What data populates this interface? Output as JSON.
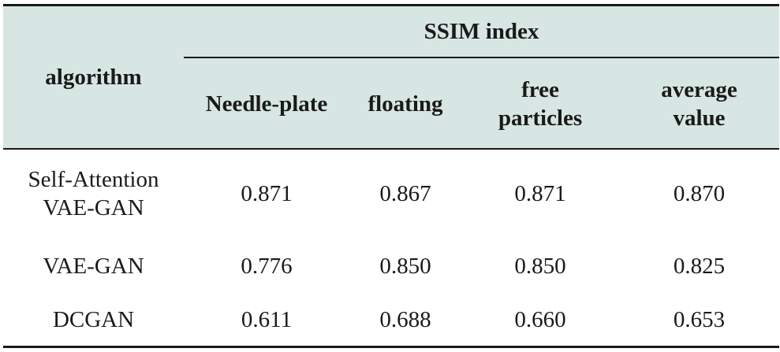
{
  "table": {
    "header": {
      "algorithm": "algorithm",
      "group": "SSIM index",
      "columns": [
        "Needle-plate",
        "floating",
        "free particles",
        "average value"
      ]
    },
    "rows": [
      {
        "algorithm": "Self-Attention VAE-GAN",
        "values": [
          "0.871",
          "0.867",
          "0.871",
          "0.870"
        ]
      },
      {
        "algorithm": "VAE-GAN",
        "values": [
          "0.776",
          "0.850",
          "0.850",
          "0.825"
        ]
      },
      {
        "algorithm": "DCGAN",
        "values": [
          "0.611",
          "0.688",
          "0.660",
          "0.653"
        ]
      }
    ]
  }
}
